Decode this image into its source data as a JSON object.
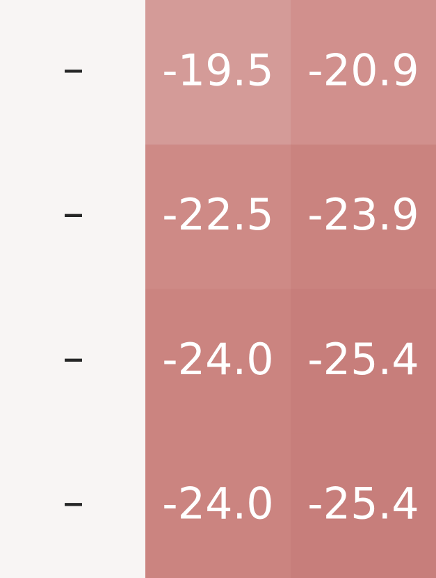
{
  "chart_data": {
    "type": "heatmap",
    "rows": [
      {
        "label": "–",
        "values": [
          "-19.5",
          "-20.9"
        ],
        "colors": [
          "#d49b98",
          "#d1908d"
        ]
      },
      {
        "label": "–",
        "values": [
          "-22.5",
          "-23.9"
        ],
        "colors": [
          "#ce8a86",
          "#ca837f"
        ]
      },
      {
        "label": "–",
        "values": [
          "-24.0",
          "-25.4"
        ],
        "colors": [
          "#cb8480",
          "#c77e7b"
        ]
      },
      {
        "label": "–",
        "values": [
          "-24.0",
          "-25.4"
        ],
        "colors": [
          "#cb8480",
          "#c77e7b"
        ]
      }
    ],
    "label_column_color": "#f8f5f4",
    "label_text_color": "#262626",
    "value_text_color": "#ffffff"
  }
}
